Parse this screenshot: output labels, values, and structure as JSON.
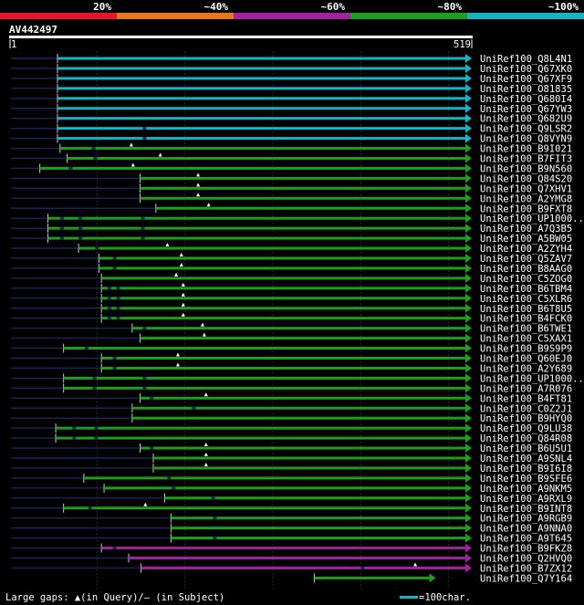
{
  "legend": {
    "percent_labels": [
      "20%",
      "~40%",
      "~60%",
      "~80%",
      "~100%"
    ],
    "percent_colors": [
      "#e8142b",
      "#e8781e",
      "#a0239e",
      "#1f9e1b",
      "#14b4c3"
    ]
  },
  "query": {
    "name": "AV442497",
    "start": "1",
    "end": "519",
    "length": 519
  },
  "hits": [
    {
      "label": "UniRef100_Q8L4N1",
      "color": "#14b4c3",
      "lo": 0,
      "hi": 55,
      "gaps": [],
      "marks": []
    },
    {
      "label": "UniRef100_Q67XK0",
      "color": "#14b4c3",
      "lo": 0,
      "hi": 55,
      "gaps": [],
      "marks": []
    },
    {
      "label": "UniRef100_Q67XF9",
      "color": "#14b4c3",
      "lo": 0,
      "hi": 55,
      "gaps": [],
      "marks": []
    },
    {
      "label": "UniRef100_O81835",
      "color": "#14b4c3",
      "lo": 0,
      "hi": 55,
      "gaps": [],
      "marks": []
    },
    {
      "label": "UniRef100_Q680I4",
      "color": "#14b4c3",
      "lo": 0,
      "hi": 55,
      "gaps": [],
      "marks": []
    },
    {
      "label": "UniRef100_Q67YW3",
      "color": "#14b4c3",
      "lo": 0,
      "hi": 55,
      "gaps": [],
      "marks": []
    },
    {
      "label": "UniRef100_Q682U9",
      "color": "#14b4c3",
      "lo": 0,
      "hi": 55,
      "gaps": [],
      "marks": []
    },
    {
      "label": "UniRef100_Q9LSR2",
      "color": "#14b4c3",
      "lo": 0,
      "hi": 55,
      "gaps": [
        152
      ],
      "marks": []
    },
    {
      "label": "UniRef100_Q8VYN9",
      "color": "#14b4c3",
      "lo": 0,
      "hi": 55,
      "gaps": [
        152
      ],
      "marks": []
    },
    {
      "label": "UniRef100_B9I021",
      "color": "#1f9e1b",
      "lo": 0,
      "hi": 58,
      "gaps": [
        94
      ],
      "marks": [
        139
      ]
    },
    {
      "label": "UniRef100_B7FIT3",
      "color": "#1f9e1b",
      "lo": 0,
      "hi": 66,
      "gaps": [
        96
      ],
      "marks": [
        172
      ]
    },
    {
      "label": "UniRef100_B9N560",
      "color": "#1f9e1b",
      "lo": 0,
      "hi": 35,
      "gaps": [
        68
      ],
      "marks": [
        141
      ]
    },
    {
      "label": "UniRef100_Q84S20",
      "color": "#1f9e1b",
      "lo": 0,
      "hi": 149,
      "gaps": [],
      "marks": [
        215
      ]
    },
    {
      "label": "UniRef100_Q7XHV1",
      "color": "#1f9e1b",
      "lo": 0,
      "hi": 149,
      "gaps": [],
      "marks": [
        215
      ]
    },
    {
      "label": "UniRef100_A2YMG8",
      "color": "#1f9e1b",
      "lo": 0,
      "hi": 149,
      "gaps": [],
      "marks": [
        215
      ]
    },
    {
      "label": "UniRef100_B9FXT8",
      "color": "#1f9e1b",
      "lo": 0,
      "hi": 167,
      "gaps": [],
      "marks": [
        227
      ]
    },
    {
      "label": "UniRef100_UP1000..",
      "color": "#1f9e1b",
      "lo": 0,
      "hi": 44,
      "gaps": [
        58,
        79,
        150
      ],
      "marks": []
    },
    {
      "label": "UniRef100_A7Q3B5",
      "color": "#1f9e1b",
      "lo": 0,
      "hi": 44,
      "gaps": [
        58,
        79,
        150
      ],
      "marks": []
    },
    {
      "label": "UniRef100_A5BW05",
      "color": "#1f9e1b",
      "lo": 0,
      "hi": 44,
      "gaps": [
        58,
        79,
        150
      ],
      "marks": []
    },
    {
      "label": "UniRef100_A2ZYH4",
      "color": "#1f9e1b",
      "lo": 0,
      "hi": 79,
      "gaps": [
        98
      ],
      "marks": [
        180
      ]
    },
    {
      "label": "UniRef100_Q5ZAV7",
      "color": "#1f9e1b",
      "lo": 0,
      "hi": 102,
      "gaps": [
        118
      ],
      "marks": [
        196
      ]
    },
    {
      "label": "UniRef100_B8AAG0",
      "color": "#1f9e1b",
      "lo": 0,
      "hi": 102,
      "gaps": [
        118
      ],
      "marks": [
        196
      ]
    },
    {
      "label": "UniRef100_C5ZOG0",
      "color": "#1f9e1b",
      "lo": 0,
      "hi": 105,
      "gaps": [],
      "marks": [
        190
      ]
    },
    {
      "label": "UniRef100_B6TBM4",
      "color": "#1f9e1b",
      "lo": 0,
      "hi": 105,
      "gaps": [
        112,
        122
      ],
      "marks": [
        198
      ]
    },
    {
      "label": "UniRef100_C5XLR6",
      "color": "#1f9e1b",
      "lo": 0,
      "hi": 105,
      "gaps": [
        112,
        122
      ],
      "marks": [
        198
      ]
    },
    {
      "label": "UniRef100_B6T8U5",
      "color": "#1f9e1b",
      "lo": 0,
      "hi": 105,
      "gaps": [
        112,
        122
      ],
      "marks": [
        198
      ]
    },
    {
      "label": "UniRef100_B4FCK0",
      "color": "#1f9e1b",
      "lo": 0,
      "hi": 105,
      "gaps": [
        112,
        122
      ],
      "marks": [
        198
      ]
    },
    {
      "label": "UniRef100_B6TWE1",
      "color": "#1f9e1b",
      "lo": 0,
      "hi": 140,
      "gaps": [
        152
      ],
      "marks": [
        220
      ]
    },
    {
      "label": "UniRef100_C5XAX1",
      "color": "#1f9e1b",
      "lo": 0,
      "hi": 149,
      "gaps": [],
      "marks": [
        222
      ]
    },
    {
      "label": "UniRef100_B9S9P9",
      "color": "#1f9e1b",
      "lo": 0,
      "hi": 62,
      "gaps": [
        86
      ],
      "marks": []
    },
    {
      "label": "UniRef100_Q60EJ0",
      "color": "#1f9e1b",
      "lo": 0,
      "hi": 105,
      "gaps": [
        118
      ],
      "marks": [
        192
      ]
    },
    {
      "label": "UniRef100_A2Y689",
      "color": "#1f9e1b",
      "lo": 0,
      "hi": 105,
      "gaps": [
        118
      ],
      "marks": [
        192
      ]
    },
    {
      "label": "UniRef100_UP1000..",
      "color": "#1f9e1b",
      "lo": 0,
      "hi": 62,
      "gaps": [
        95,
        152
      ],
      "marks": []
    },
    {
      "label": "UniRef100_A7R076",
      "color": "#1f9e1b",
      "lo": 0,
      "hi": 62,
      "gaps": [
        95,
        152
      ],
      "marks": []
    },
    {
      "label": "UniRef100_B4FT81",
      "color": "#1f9e1b",
      "lo": 0,
      "hi": 149,
      "gaps": [
        160
      ],
      "marks": [
        224
      ]
    },
    {
      "label": "UniRef100_C0Z2J1",
      "color": "#1f9e1b",
      "lo": 0,
      "hi": 140,
      "gaps": [
        208
      ],
      "marks": []
    },
    {
      "label": "UniRef100_B9HYQ0",
      "color": "#1f9e1b",
      "lo": 0,
      "hi": 140,
      "gaps": [],
      "marks": []
    },
    {
      "label": "UniRef100_Q9LU38",
      "color": "#1f9e1b",
      "lo": 0,
      "hi": 53,
      "gaps": [
        72,
        97
      ],
      "marks": []
    },
    {
      "label": "UniRef100_Q84R08",
      "color": "#1f9e1b",
      "lo": 0,
      "hi": 53,
      "gaps": [
        72,
        97
      ],
      "marks": []
    },
    {
      "label": "UniRef100_B6U5U1",
      "color": "#1f9e1b",
      "lo": 0,
      "hi": 149,
      "gaps": [
        160
      ],
      "marks": [
        224
      ]
    },
    {
      "label": "UniRef100_A9SNL4",
      "color": "#1f9e1b",
      "lo": 0,
      "hi": 164,
      "gaps": [],
      "marks": [
        224
      ]
    },
    {
      "label": "UniRef100_B9I6I8",
      "color": "#1f9e1b",
      "lo": 0,
      "hi": 164,
      "gaps": [],
      "marks": [
        224
      ]
    },
    {
      "label": "UniRef100_B9SFE6",
      "color": "#1f9e1b",
      "lo": 0,
      "hi": 85,
      "gaps": [
        180
      ],
      "marks": []
    },
    {
      "label": "UniRef100_A9NKM5",
      "color": "#1f9e1b",
      "lo": 0,
      "hi": 108,
      "gaps": [
        185
      ],
      "marks": []
    },
    {
      "label": "UniRef100_A9RXL9",
      "color": "#1f9e1b",
      "lo": 0,
      "hi": 177,
      "gaps": [
        230
      ],
      "marks": []
    },
    {
      "label": "UniRef100_B9INT8",
      "color": "#1f9e1b",
      "lo": 0,
      "hi": 62,
      "gaps": [
        90
      ],
      "marks": [
        155
      ]
    },
    {
      "label": "UniRef100_A9RGB9",
      "color": "#1f9e1b",
      "lo": 0,
      "hi": 184,
      "gaps": [
        232
      ],
      "marks": []
    },
    {
      "label": "UniRef100_A9NNA0",
      "color": "#1f9e1b",
      "lo": 0,
      "hi": 184,
      "gaps": [],
      "marks": []
    },
    {
      "label": "UniRef100_A9T645",
      "color": "#1f9e1b",
      "lo": 0,
      "hi": 184,
      "gaps": [
        232
      ],
      "marks": []
    },
    {
      "label": "UniRef100_B9FKZ8",
      "color": "#a0239e",
      "lo": 0,
      "hi": 105,
      "gaps": [
        118
      ],
      "marks": []
    },
    {
      "label": "UniRef100_Q2HVQ0",
      "color": "#a0239e",
      "lo": 0,
      "hi": 136,
      "gaps": [],
      "marks": []
    },
    {
      "label": "UniRef100_B7ZX12",
      "color": "#a0239e",
      "lo": 0,
      "hi": 150,
      "gaps": [
        400
      ],
      "marks": [
        462
      ]
    },
    {
      "label": "UniRef100_Q7Y164",
      "color": "#1f9e1b",
      "lo": 347,
      "hi": 347,
      "gaps": [],
      "marks": [],
      "short_end": 478
    }
  ],
  "footer": {
    "gaps_text": "Large gaps: ▲(in Query)/– (in Subject)",
    "scale_text": "=100char.",
    "scale_color": "#14b4c3"
  }
}
